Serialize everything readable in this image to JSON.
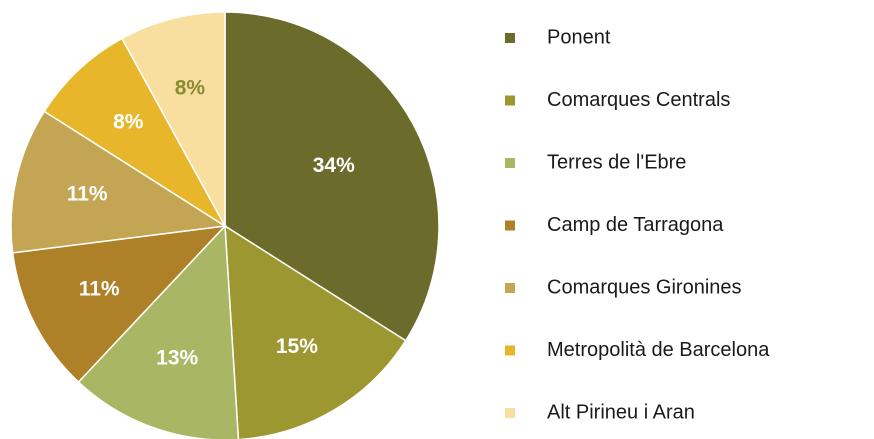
{
  "chart_data": {
    "type": "pie",
    "categories": [
      "Ponent",
      "Comarques Centrals",
      "Terres de l'Ebre",
      "Camp de Tarragona",
      "Comarques Gironines",
      "Metropolità de Barcelona",
      "Alt Pirineu i Aran"
    ],
    "values": [
      34,
      15,
      13,
      11,
      11,
      8,
      8
    ],
    "value_labels": [
      "34%",
      "15%",
      "13%",
      "11%",
      "11%",
      "8%",
      "8%"
    ],
    "colors": [
      "#6b6b2b",
      "#9c9731",
      "#a9b664",
      "#ae8027",
      "#c3a553",
      "#e7b62b",
      "#f8dfa0"
    ],
    "label_colors": [
      "#ffffff",
      "#ffffff",
      "#ffffff",
      "#ffffff",
      "#ffffff",
      "#ffffff",
      "#8a8a35"
    ],
    "legend": "right"
  }
}
